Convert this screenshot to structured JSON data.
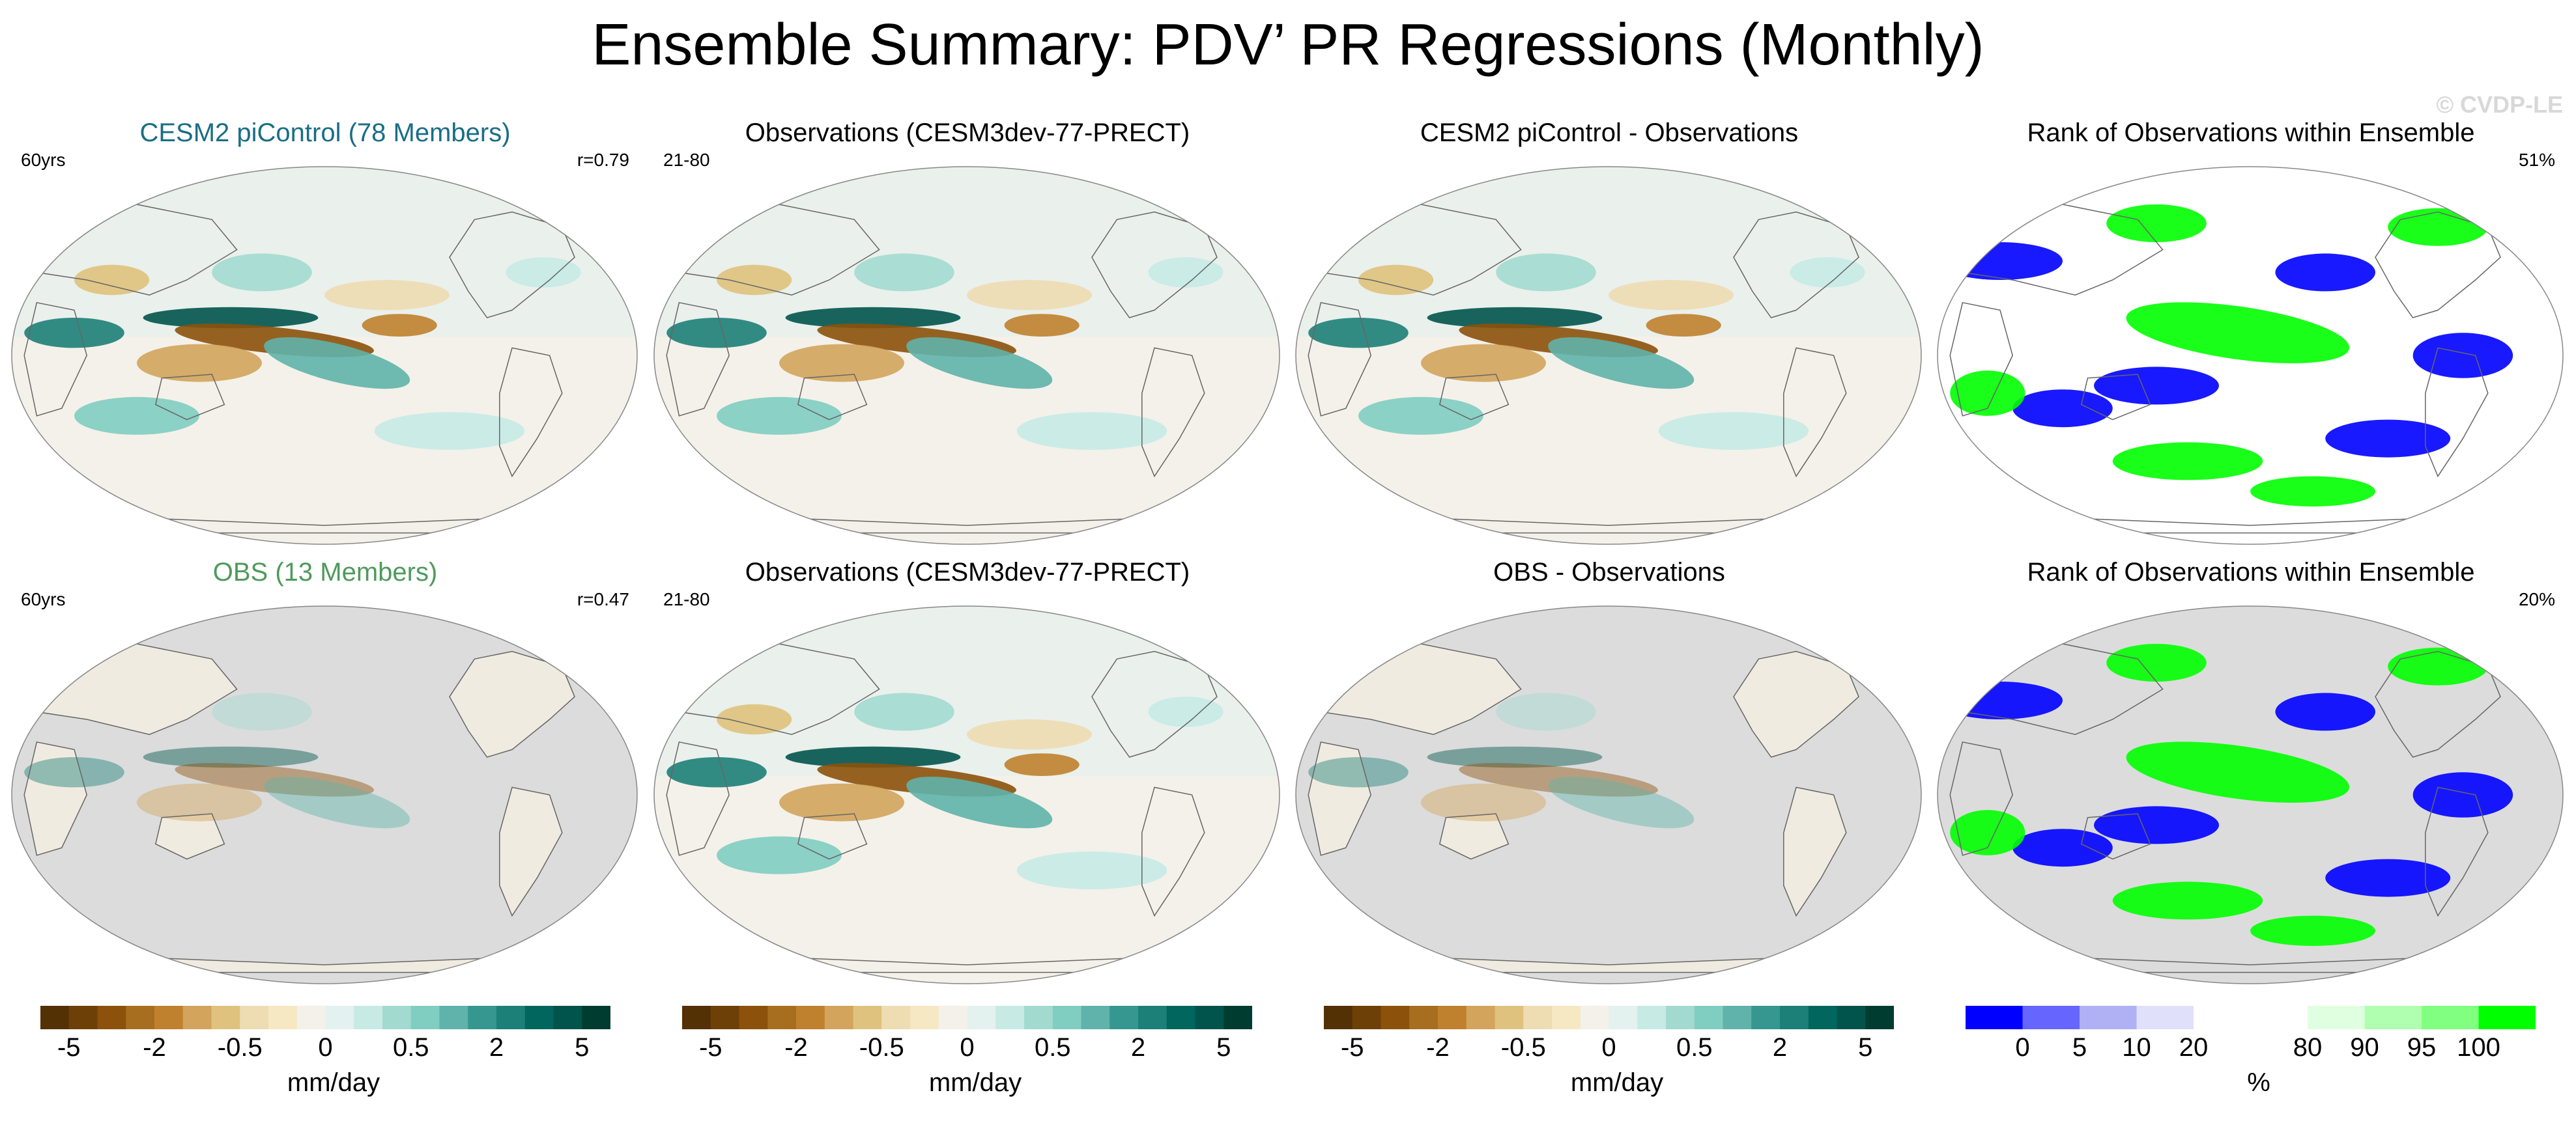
{
  "main_title": "Ensemble Summary: PDV’ PR Regressions (Monthly)",
  "watermark": "© CVDP-LE",
  "chart_data": [
    {
      "type": "heatmap",
      "row": 1,
      "col": 1,
      "title": "CESM2 piControl (78 Members)",
      "title_color": "#1a6e86",
      "top_left": "60yrs",
      "top_right": "r=0.79",
      "palette": "brown-teal",
      "background": "ocean",
      "units": "mm/day"
    },
    {
      "type": "heatmap",
      "row": 1,
      "col": 2,
      "title": "Observations (CESM3dev-77-PRECT)",
      "title_color": "#000000",
      "top_left": "21-80",
      "top_right": "",
      "palette": "brown-teal",
      "background": "ocean",
      "units": "mm/day"
    },
    {
      "type": "heatmap",
      "row": 1,
      "col": 3,
      "title": "CESM2 piControl - Observations",
      "title_color": "#000000",
      "top_left": "",
      "top_right": "",
      "palette": "brown-teal",
      "background": "ocean",
      "units": "mm/day"
    },
    {
      "type": "heatmap",
      "row": 1,
      "col": 4,
      "title": "Rank of Observations within Ensemble",
      "title_color": "#000000",
      "top_left": "",
      "top_right": "51%",
      "palette": "rank",
      "background": "ocean",
      "units": "%"
    },
    {
      "type": "heatmap",
      "row": 2,
      "col": 1,
      "title": "OBS (13 Members)",
      "title_color": "#4f9a5c",
      "top_left": "60yrs",
      "top_right": "r=0.47",
      "palette": "brown-teal",
      "background": "land",
      "units": "mm/day"
    },
    {
      "type": "heatmap",
      "row": 2,
      "col": 2,
      "title": "Observations (CESM3dev-77-PRECT)",
      "title_color": "#000000",
      "top_left": "21-80",
      "top_right": "",
      "palette": "brown-teal",
      "background": "ocean",
      "units": "mm/day"
    },
    {
      "type": "heatmap",
      "row": 2,
      "col": 3,
      "title": "OBS - Observations",
      "title_color": "#000000",
      "top_left": "",
      "top_right": "",
      "palette": "brown-teal",
      "background": "land",
      "units": "mm/day"
    },
    {
      "type": "heatmap",
      "row": 2,
      "col": 4,
      "title": "Rank of Observations within Ensemble",
      "title_color": "#000000",
      "top_left": "",
      "top_right": "20%",
      "palette": "rank",
      "background": "land",
      "units": "%"
    }
  ],
  "colorbars": [
    {
      "label": "mm/day",
      "ticks": [
        "-5",
        "-2",
        "-0.5",
        "0",
        "0.5",
        "2",
        "5"
      ],
      "colors": [
        "#543005",
        "#6d4008",
        "#8c510a",
        "#a86e1f",
        "#bf812d",
        "#d2a45c",
        "#dfc27d",
        "#eedcb3",
        "#f6e8c3",
        "#f4f1ea",
        "#e3f1ef",
        "#c7eae5",
        "#a3dad0",
        "#80cdc1",
        "#5fb3aa",
        "#35978f",
        "#1d8078",
        "#01665e",
        "#01544c",
        "#003c30"
      ]
    },
    {
      "label": "mm/day",
      "ticks": [
        "-5",
        "-2",
        "-0.5",
        "0",
        "0.5",
        "2",
        "5"
      ],
      "colors": [
        "#543005",
        "#6d4008",
        "#8c510a",
        "#a86e1f",
        "#bf812d",
        "#d2a45c",
        "#dfc27d",
        "#eedcb3",
        "#f6e8c3",
        "#f4f1ea",
        "#e3f1ef",
        "#c7eae5",
        "#a3dad0",
        "#80cdc1",
        "#5fb3aa",
        "#35978f",
        "#1d8078",
        "#01665e",
        "#01544c",
        "#003c30"
      ]
    },
    {
      "label": "mm/day",
      "ticks": [
        "-5",
        "-2",
        "-0.5",
        "0",
        "0.5",
        "2",
        "5"
      ],
      "colors": [
        "#543005",
        "#6d4008",
        "#8c510a",
        "#a86e1f",
        "#bf812d",
        "#d2a45c",
        "#dfc27d",
        "#eedcb3",
        "#f6e8c3",
        "#f4f1ea",
        "#e3f1ef",
        "#c7eae5",
        "#a3dad0",
        "#80cdc1",
        "#5fb3aa",
        "#35978f",
        "#1d8078",
        "#01665e",
        "#01544c",
        "#003c30"
      ]
    },
    {
      "label": "%",
      "ticks": [
        "0",
        "5",
        "10",
        "20",
        "80",
        "90",
        "95",
        "100"
      ],
      "colors": [
        "#0000ff",
        "#6666ff",
        "#b0b0f5",
        "#e0e0fa",
        "#ffffff",
        "#ffffff",
        "#e0ffe0",
        "#b0ffb0",
        "#80ff80",
        "#00ff00"
      ]
    }
  ]
}
